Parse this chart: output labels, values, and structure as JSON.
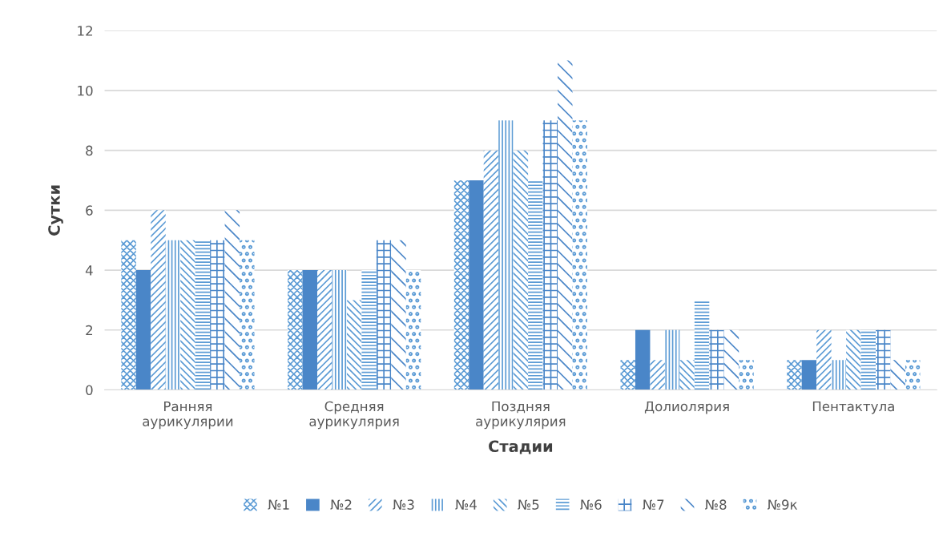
{
  "chart_data": {
    "type": "bar",
    "xlabel": "Стадии",
    "ylabel": "Сутки",
    "categories": [
      "Ранняя аурикулярии",
      "Средняя аурикулярия",
      "Поздняя аурикулярия",
      "Долиолярия",
      "Пентактула"
    ],
    "series": [
      {
        "name": "№1",
        "color": "#5b9bd5",
        "values": [
          5,
          4,
          7,
          1,
          1
        ]
      },
      {
        "name": "№2",
        "color": "#4a86c8",
        "values": [
          4,
          4,
          7,
          2,
          1
        ]
      },
      {
        "name": "№3",
        "color": "#5b9bd5",
        "values": [
          6,
          4,
          8,
          1,
          2
        ]
      },
      {
        "name": "№4",
        "color": "#5b9bd5",
        "values": [
          5,
          4,
          9,
          2,
          1
        ]
      },
      {
        "name": "№5",
        "color": "#5b9bd5",
        "values": [
          5,
          3,
          8,
          1,
          2
        ]
      },
      {
        "name": "№6",
        "color": "#5b9bd5",
        "values": [
          5,
          4,
          7,
          3,
          2
        ]
      },
      {
        "name": "№7",
        "color": "#4a86c8",
        "values": [
          5,
          5,
          9,
          2,
          2
        ]
      },
      {
        "name": "№8",
        "color": "#4a86c8",
        "values": [
          6,
          5,
          11,
          2,
          1
        ]
      },
      {
        "name": "№9к",
        "color": "#5b9bd5",
        "values": [
          5,
          4,
          9,
          1,
          1
        ]
      }
    ],
    "ylim": [
      0,
      12
    ],
    "yticks": [
      0,
      2,
      4,
      6,
      8,
      10,
      12
    ],
    "grid": "y",
    "legend": "bottom"
  }
}
